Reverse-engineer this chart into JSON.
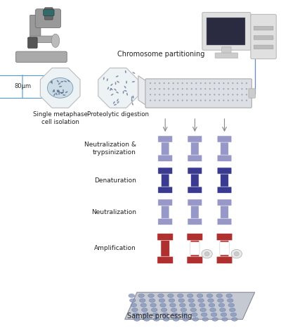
{
  "bg_color": "#ffffff",
  "labels": {
    "chromosome_partitioning": "Chromosome partitioning",
    "single_metaphase": "Single metaphase\ncell isolation",
    "proteolytic": "Proteolytic digestion",
    "neutralization_tryp": "Neutralization &\ntrypsinization",
    "denaturation": "Denaturation",
    "neutralization": "Neutralization",
    "amplification": "Amplification",
    "sample_processing": "Sample processing",
    "scale": "80μm"
  },
  "colors": {
    "tube_purple_light": "#9898c8",
    "tube_purple_dark": "#3a3a90",
    "tube_red": "#b03030",
    "microfluidic_bg": "#d8dce0",
    "octagon_fill": "#edf2f5",
    "octagon_stroke": "#bbbbbb",
    "cell_circle": "#ccdde8",
    "plate_bg": "#c5cad2",
    "plate_well_fill": "#8899bb",
    "plate_well_edge": "#5566aa",
    "arrow_color": "#7799bb",
    "text_color": "#222222",
    "microscope_body": "#888888",
    "microscope_dark": "#555555",
    "microscope_teal": "#336666",
    "computer_light": "#e0e0e0",
    "computer_dark": "#cccccc",
    "computer_screen": "#2a2a40",
    "scale_color": "#5599cc",
    "funnel_line": "#aaaaaa",
    "chip_dot": "#445577"
  }
}
